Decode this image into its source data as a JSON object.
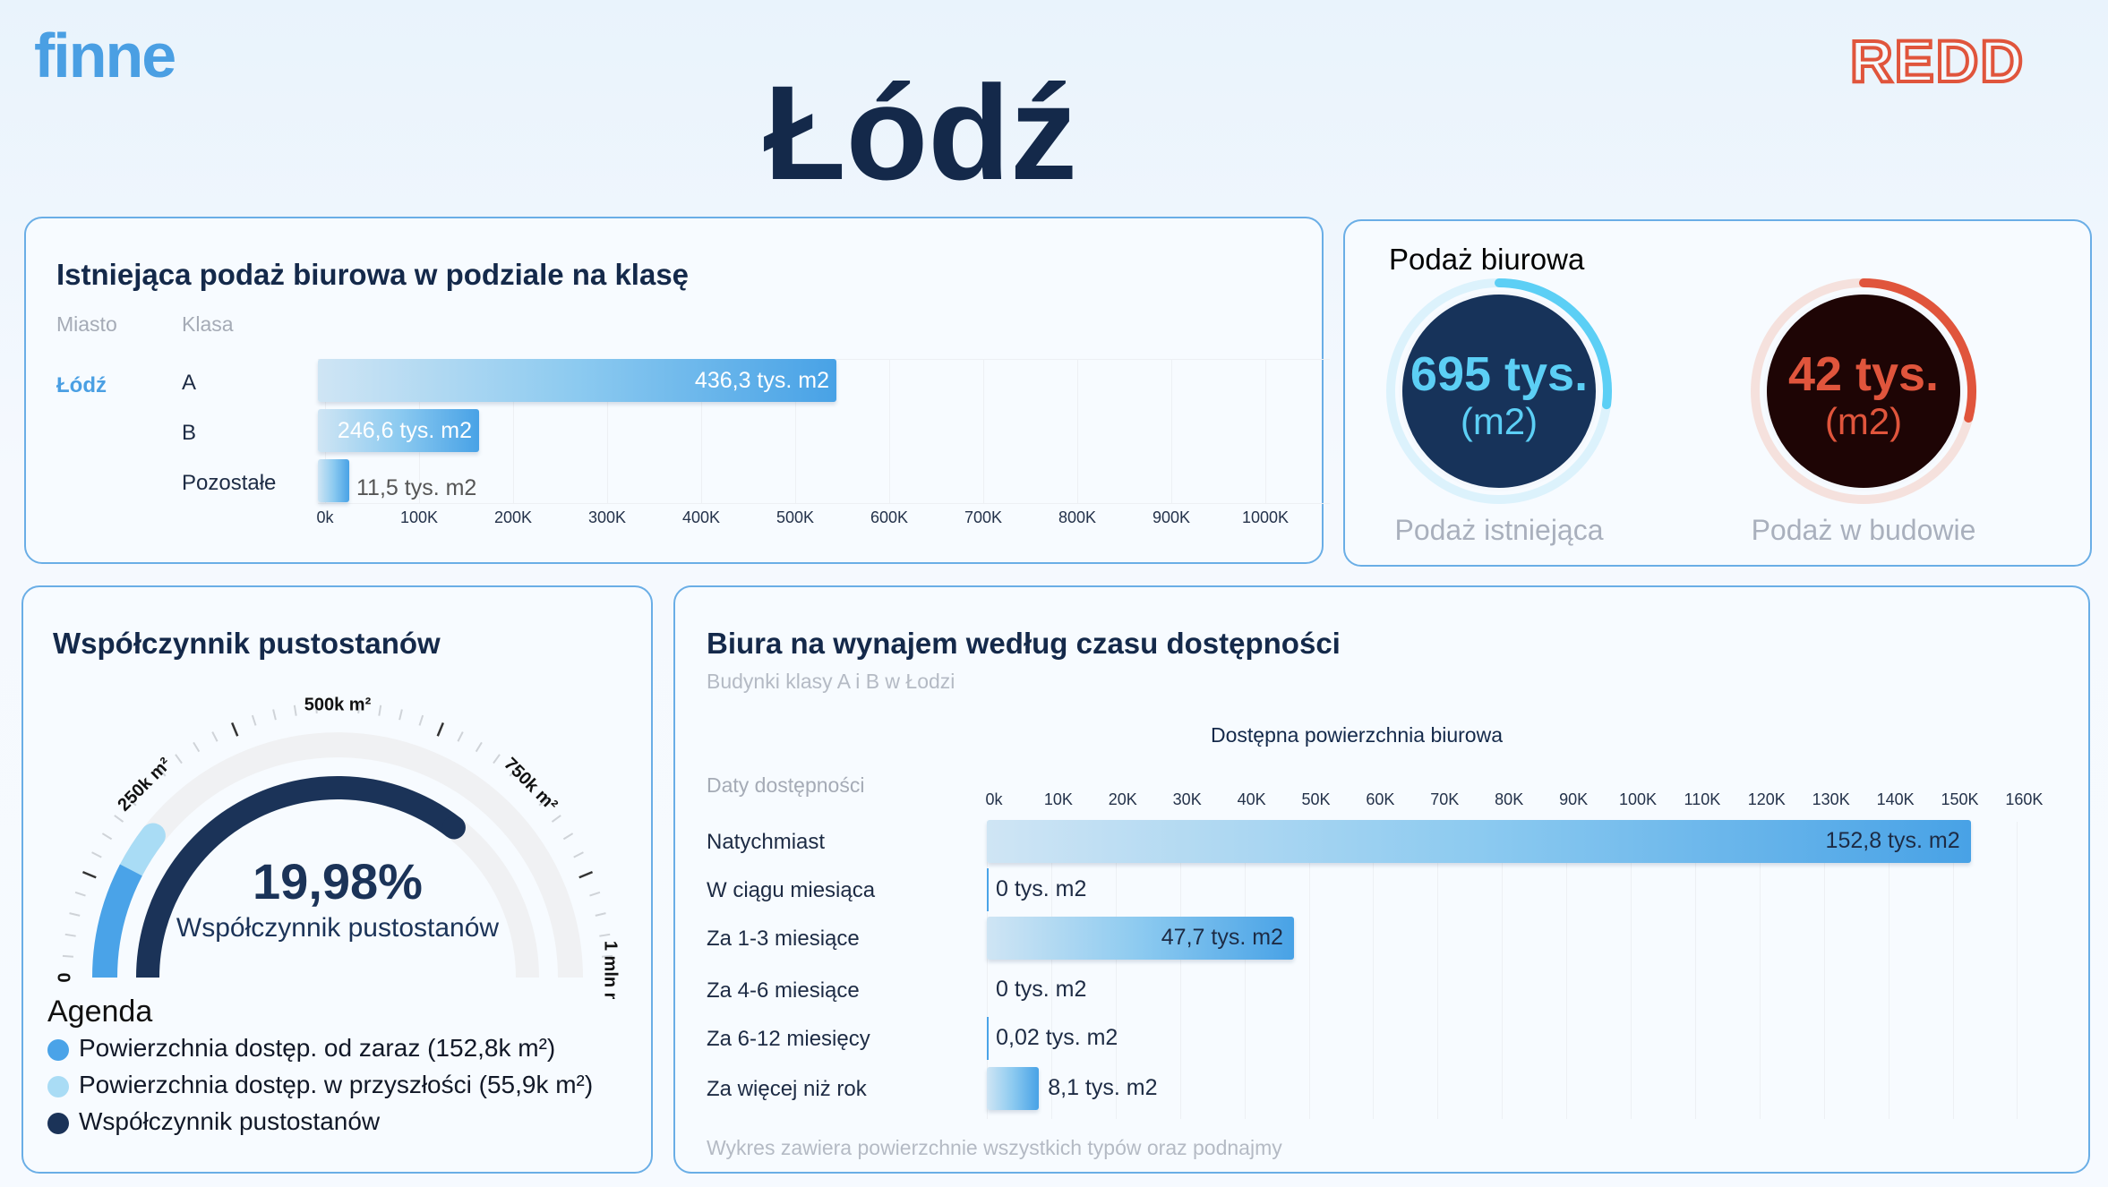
{
  "header": {
    "logo_left": "finne",
    "logo_right": "REDD",
    "title": "Łódź"
  },
  "colors": {
    "accent_blue": "#4aa3e8",
    "navy": "#1b3358",
    "cyan": "#5ccff5",
    "red": "#e0553c",
    "light_blue": "#a9dcf5"
  },
  "supply_by_class": {
    "title": "Istniejąca podaż biurowa w podziale na klasę",
    "col_city": "Miasto",
    "col_class": "Klasa",
    "city": "Łódź",
    "chart_data": {
      "type": "bar",
      "orientation": "horizontal",
      "categories": [
        "A",
        "B",
        "Pozostałe"
      ],
      "values": [
        436.3,
        246.6,
        11.5
      ],
      "unit": "tys. m2",
      "data_labels": [
        "436,3 tys. m2",
        "246,6 tys. m2",
        "11,5 tys. m2"
      ],
      "x_ticks": [
        "0k",
        "100K",
        "200K",
        "300K",
        "400K",
        "500K",
        "600K",
        "700K",
        "800K",
        "900K",
        "1000K"
      ],
      "xlim": [
        0,
        1000000
      ],
      "grid": true
    }
  },
  "office_supply": {
    "title": "Podaż biurowa",
    "existing": {
      "value": "695 tys.",
      "unit": "(m2)",
      "label": "Podaż istniejąca",
      "ring_fill": 0.27
    },
    "under_construction": {
      "value": "42 tys.",
      "unit": "(m2)",
      "label": "Podaż w budowie",
      "ring_fill": 0.29
    }
  },
  "vacancy": {
    "title": "Współczynnik pustostanów",
    "value": "19,98%",
    "value_label": "Współczynnik pustostanów",
    "gauge": {
      "scale_max_m2": 1000000,
      "tick_labels": [
        "0",
        "250k m²",
        "500k m²",
        "750k m²",
        "1 mln m²"
      ],
      "available_now_m2": 152800,
      "available_future_m2": 55900,
      "vacancy_arc_fill": 0.71
    },
    "legend_title": "Agenda",
    "legend": [
      {
        "label": "Powierzchnia dostęp. od zaraz (152,8k m²)",
        "color": "#4aa3e8"
      },
      {
        "label": "Powierzchnia dostęp. w przyszłości (55,9k m²)",
        "color": "#a9dcf5"
      },
      {
        "label": "Współczynnik pustostanów",
        "color": "#1b3358"
      }
    ]
  },
  "availability": {
    "title": "Biura na wynajem według czasu dostępności",
    "subtitle": "Budynki klasy A i B w Łodzi",
    "row_header": "Daty dostępności",
    "footnote": "Wykres zawiera powierzchnie wszystkich typów oraz podnajmy",
    "chart_data": {
      "type": "bar",
      "orientation": "horizontal",
      "title": "Dostępna powierzchnia biurowa",
      "categories": [
        "Natychmiast",
        "W ciągu miesiąca",
        "Za 1-3 miesiące",
        "Za 4-6 miesiące",
        "Za 6-12 miesięcy",
        "Za więcej niż rok"
      ],
      "values": [
        152.8,
        0,
        47.7,
        0,
        0.02,
        8.1
      ],
      "unit": "tys. m2",
      "data_labels": [
        "152,8 tys. m2",
        "0 tys. m2",
        "47,7 tys. m2",
        "0 tys. m2",
        "0,02 tys. m2",
        "8,1 tys. m2"
      ],
      "x_ticks": [
        "0k",
        "10K",
        "20K",
        "30K",
        "40K",
        "50K",
        "60K",
        "70K",
        "80K",
        "90K",
        "100K",
        "110K",
        "120K",
        "130K",
        "140K",
        "150K",
        "160K"
      ],
      "xlim": [
        0,
        160000
      ],
      "grid": true
    }
  }
}
